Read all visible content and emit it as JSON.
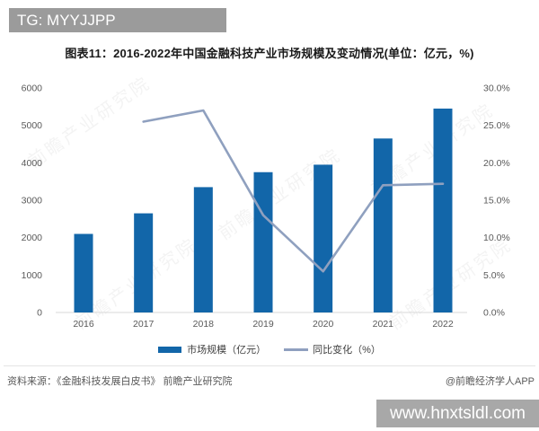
{
  "header": {
    "tag": "TG: MYYJJPP"
  },
  "title": "图表11：2016-2022年中国金融科技产业市场规模及变动情况(单位：亿元，%)",
  "chart_data": {
    "type": "bar",
    "subtype": "bar+line combo",
    "title": "图表11：2016-2022年中国金融科技产业市场规模及变动情况(单位：亿元，%)",
    "categories": [
      "2016",
      "2017",
      "2018",
      "2019",
      "2020",
      "2021",
      "2022"
    ],
    "series": [
      {
        "name": "市场规模（亿元）",
        "type": "bar",
        "axis": "left",
        "values": [
          2100,
          2650,
          3350,
          3750,
          3950,
          4650,
          5450
        ],
        "color": "#1266a9"
      },
      {
        "name": "同比变化（%）",
        "type": "line",
        "axis": "right",
        "values": [
          null,
          25.5,
          27.0,
          13.0,
          5.5,
          17.0,
          17.2
        ],
        "color": "#8fa0bf"
      }
    ],
    "left_axis": {
      "min": 0,
      "max": 6000,
      "ticks": [
        "6000",
        "5000",
        "4000",
        "3000",
        "2000",
        "1000",
        "0"
      ]
    },
    "right_axis": {
      "min": 0,
      "max": 30,
      "ticks": [
        "30.0%",
        "25.0%",
        "20.0%",
        "15.0%",
        "10.0%",
        "5.0%",
        "0.0%"
      ]
    },
    "grid": false,
    "legend_position": "bottom"
  },
  "legend": {
    "bar_label": "市场规模（亿元）",
    "line_label": "同比变化（%）"
  },
  "footer": {
    "source": "资料来源：《金融科技发展白皮书》 前瞻产业研究院",
    "credit": "@前瞻经济学人APP"
  },
  "watermark": {
    "diagonal": "前瞻产业研究院",
    "bottom_bar": "www.hnxtsldl.com"
  },
  "colors": {
    "bar": "#1266a9",
    "line": "#8fa0bf",
    "header_bg": "#9b9b9b",
    "bottom_bar_bg": "#a8a8a8",
    "axis_text": "#595959",
    "baseline": "#d9d9d9"
  }
}
